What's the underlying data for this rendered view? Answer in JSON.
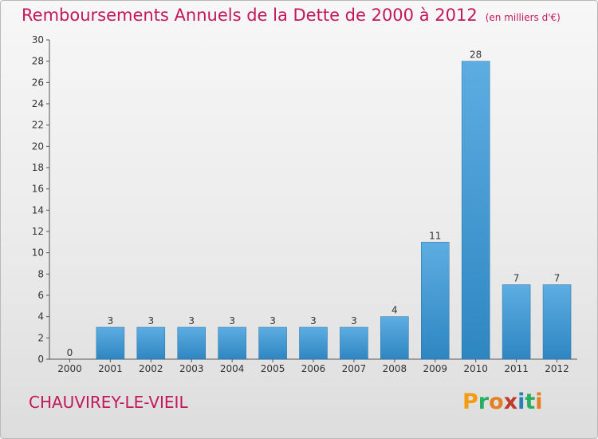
{
  "title": "Remboursements Annuels de la Dette de 2000 à 2012",
  "unit": "(en milliers d'€)",
  "commune": "CHAUVIREY-LE-VIEIL",
  "logo": {
    "letters": [
      "P",
      "r",
      "o",
      "x",
      "i",
      "t",
      "i"
    ],
    "colors": [
      "#f39c12",
      "#27ae60",
      "#e67e22",
      "#c0392b",
      "#2980b9",
      "#27ae60",
      "#e67e22"
    ]
  },
  "colors": {
    "title": "#c2185b",
    "bar_top": "#5dade2",
    "bar_bottom": "#2e86c1"
  },
  "chart_data": {
    "type": "bar",
    "categories": [
      "2000",
      "2001",
      "2002",
      "2003",
      "2004",
      "2005",
      "2006",
      "2007",
      "2008",
      "2009",
      "2010",
      "2011",
      "2012"
    ],
    "values": [
      0,
      3,
      3,
      3,
      3,
      3,
      3,
      3,
      4,
      11,
      28,
      7,
      7
    ],
    "data_labels": [
      "0",
      "3",
      "3",
      "3",
      "3",
      "3",
      "3",
      "3",
      "4",
      "11",
      "28",
      "7",
      "7"
    ],
    "yticks": [
      "0",
      "2",
      "4",
      "6",
      "8",
      "10",
      "12",
      "14",
      "16",
      "18",
      "20",
      "22",
      "24",
      "26",
      "28",
      "30"
    ],
    "ylim": [
      0,
      30
    ],
    "title": "Remboursements Annuels de la Dette de 2000 à 2012",
    "grid": false
  }
}
